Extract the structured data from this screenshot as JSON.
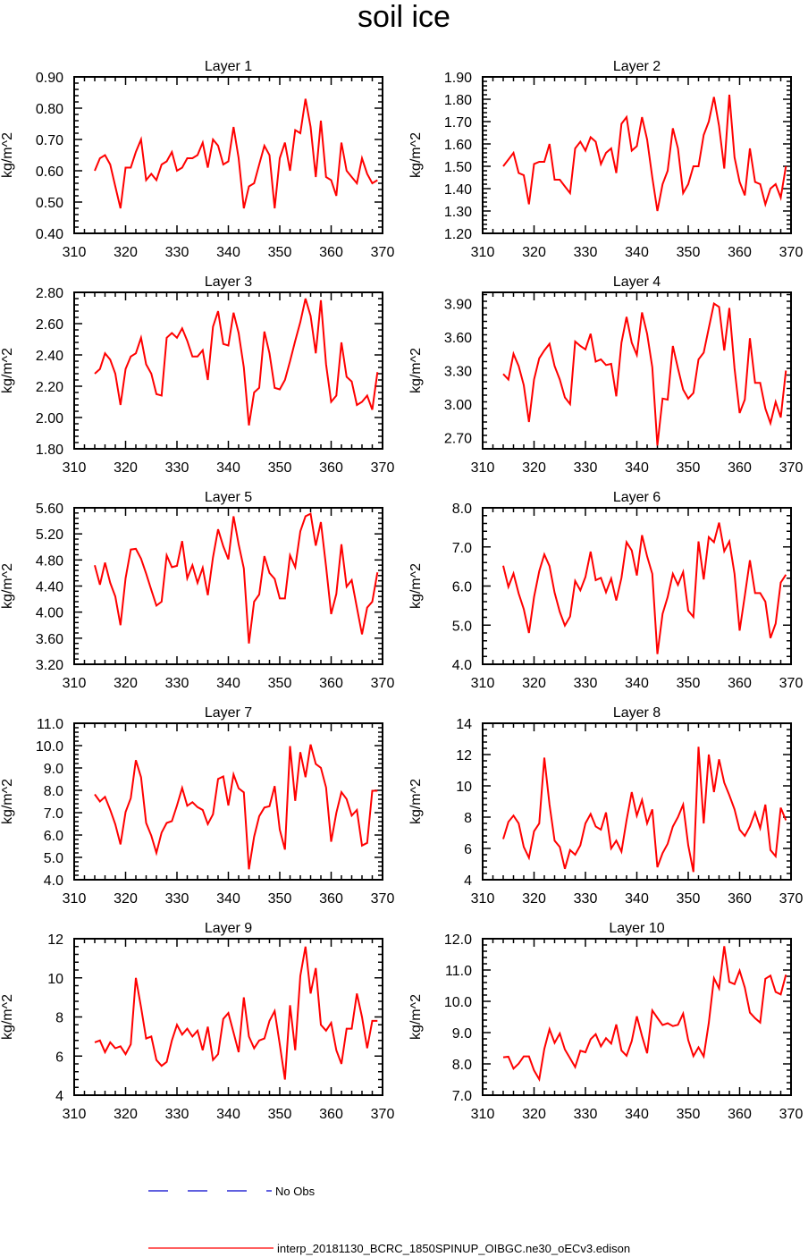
{
  "title": "soil ice",
  "colors": {
    "model": "#ff0000",
    "obs": "#0000cc",
    "axis": "#000000"
  },
  "legend": [
    {
      "label": "No Obs",
      "color": "#0000cc",
      "style": "dashed"
    },
    {
      "label": "interp_20181130_BCRC_1850SPINUP_OIBGC.ne30_oECv3.edison",
      "color": "#ff0000",
      "style": "solid"
    }
  ],
  "chart_data": [
    {
      "type": "line",
      "title": "Layer 1",
      "xlabel": "",
      "ylabel": "kg/m^2",
      "xlim": [
        310,
        370
      ],
      "ylim": [
        0.4,
        0.9
      ],
      "xticks": [
        "310",
        "320",
        "330",
        "340",
        "350",
        "360",
        "370"
      ],
      "yticks": [
        "0.40",
        "0.50",
        "0.60",
        "0.70",
        "0.80",
        "0.90"
      ],
      "x_start": 314,
      "values": [
        0.6,
        0.64,
        0.65,
        0.62,
        0.55,
        0.48,
        0.61,
        0.61,
        0.66,
        0.7,
        0.57,
        0.59,
        0.57,
        0.62,
        0.63,
        0.66,
        0.6,
        0.61,
        0.64,
        0.64,
        0.65,
        0.69,
        0.61,
        0.7,
        0.68,
        0.62,
        0.63,
        0.74,
        0.64,
        0.48,
        0.55,
        0.56,
        0.62,
        0.68,
        0.65,
        0.48,
        0.64,
        0.69,
        0.6,
        0.73,
        0.72,
        0.83,
        0.74,
        0.58,
        0.76,
        0.58,
        0.57,
        0.52,
        0.69,
        0.6,
        0.58,
        0.56,
        0.64,
        0.59,
        0.56,
        0.57
      ]
    },
    {
      "type": "line",
      "title": "Layer 2",
      "xlabel": "",
      "ylabel": "kg/m^2",
      "xlim": [
        310,
        370
      ],
      "ylim": [
        1.2,
        1.9
      ],
      "xticks": [
        "310",
        "320",
        "330",
        "340",
        "350",
        "360",
        "370"
      ],
      "yticks": [
        "1.20",
        "1.30",
        "1.40",
        "1.50",
        "1.60",
        "1.70",
        "1.80",
        "1.90"
      ],
      "x_start": 314,
      "values": [
        1.5,
        1.53,
        1.56,
        1.47,
        1.46,
        1.33,
        1.51,
        1.52,
        1.52,
        1.6,
        1.44,
        1.44,
        1.41,
        1.38,
        1.58,
        1.61,
        1.57,
        1.63,
        1.61,
        1.51,
        1.56,
        1.58,
        1.47,
        1.69,
        1.72,
        1.57,
        1.59,
        1.72,
        1.62,
        1.45,
        1.3,
        1.42,
        1.48,
        1.67,
        1.58,
        1.38,
        1.42,
        1.5,
        1.5,
        1.64,
        1.7,
        1.81,
        1.68,
        1.49,
        1.82,
        1.54,
        1.43,
        1.37,
        1.58,
        1.43,
        1.42,
        1.33,
        1.4,
        1.42,
        1.36,
        1.5
      ]
    },
    {
      "type": "line",
      "title": "Layer 3",
      "xlabel": "",
      "ylabel": "kg/m^2",
      "xlim": [
        310,
        370
      ],
      "ylim": [
        1.8,
        2.8
      ],
      "xticks": [
        "310",
        "320",
        "330",
        "340",
        "350",
        "360",
        "370"
      ],
      "yticks": [
        "1.80",
        "2.00",
        "2.20",
        "2.40",
        "2.60",
        "2.80"
      ],
      "x_start": 314,
      "values": [
        2.28,
        2.31,
        2.41,
        2.37,
        2.28,
        2.08,
        2.31,
        2.39,
        2.41,
        2.51,
        2.34,
        2.28,
        2.15,
        2.14,
        2.51,
        2.54,
        2.51,
        2.57,
        2.49,
        2.39,
        2.39,
        2.43,
        2.24,
        2.58,
        2.68,
        2.47,
        2.46,
        2.67,
        2.54,
        2.32,
        1.95,
        2.16,
        2.19,
        2.55,
        2.41,
        2.19,
        2.18,
        2.24,
        2.36,
        2.49,
        2.61,
        2.76,
        2.65,
        2.41,
        2.75,
        2.34,
        2.1,
        2.14,
        2.48,
        2.26,
        2.23,
        2.08,
        2.1,
        2.14,
        2.05,
        2.29
      ]
    },
    {
      "type": "line",
      "title": "Layer 4",
      "xlabel": "",
      "ylabel": "kg/m^2",
      "xlim": [
        310,
        370
      ],
      "ylim": [
        2.6,
        4.0
      ],
      "xticks": [
        "310",
        "320",
        "330",
        "340",
        "350",
        "360",
        "370"
      ],
      "yticks": [
        "2.70",
        "3.00",
        "3.30",
        "3.60",
        "3.90"
      ],
      "x_start": 314,
      "values": [
        3.27,
        3.22,
        3.45,
        3.34,
        3.17,
        2.84,
        3.22,
        3.41,
        3.48,
        3.54,
        3.34,
        3.22,
        3.06,
        3.0,
        3.56,
        3.52,
        3.49,
        3.63,
        3.38,
        3.4,
        3.35,
        3.36,
        3.07,
        3.55,
        3.78,
        3.55,
        3.44,
        3.82,
        3.63,
        3.33,
        2.63,
        3.05,
        3.04,
        3.52,
        3.32,
        3.13,
        3.05,
        3.1,
        3.4,
        3.46,
        3.68,
        3.9,
        3.87,
        3.48,
        3.86,
        3.32,
        2.92,
        3.04,
        3.59,
        3.19,
        3.19,
        2.96,
        2.83,
        3.02,
        2.88,
        3.3
      ]
    },
    {
      "type": "line",
      "title": "Layer 5",
      "xlabel": "",
      "ylabel": "kg/m^2",
      "xlim": [
        310,
        370
      ],
      "ylim": [
        3.2,
        5.6
      ],
      "xticks": [
        "310",
        "320",
        "330",
        "340",
        "350",
        "360",
        "370"
      ],
      "yticks": [
        "3.20",
        "3.60",
        "4.00",
        "4.40",
        "4.80",
        "5.20",
        "5.60"
      ],
      "x_start": 314,
      "values": [
        4.72,
        4.42,
        4.76,
        4.45,
        4.24,
        3.8,
        4.52,
        4.96,
        4.97,
        4.82,
        4.59,
        4.34,
        4.1,
        4.16,
        4.87,
        4.69,
        4.71,
        5.09,
        4.52,
        4.72,
        4.45,
        4.68,
        4.26,
        4.84,
        5.27,
        5.01,
        4.81,
        5.47,
        5.04,
        4.67,
        3.52,
        4.16,
        4.27,
        4.86,
        4.6,
        4.51,
        4.21,
        4.21,
        4.87,
        4.69,
        5.24,
        5.47,
        5.51,
        5.02,
        5.38,
        4.7,
        3.97,
        4.28,
        5.04,
        4.39,
        4.49,
        4.07,
        3.66,
        4.07,
        4.16,
        4.61
      ]
    },
    {
      "type": "line",
      "title": "Layer 6",
      "xlabel": "",
      "ylabel": "kg/m^2",
      "xlim": [
        310,
        370
      ],
      "ylim": [
        4.0,
        8.0
      ],
      "xticks": [
        "310",
        "320",
        "330",
        "340",
        "350",
        "360",
        "370"
      ],
      "yticks": [
        "4.0",
        "5.0",
        "6.0",
        "7.0",
        "8.0"
      ],
      "x_start": 314,
      "values": [
        6.52,
        5.98,
        6.32,
        5.81,
        5.41,
        4.8,
        5.72,
        6.38,
        6.81,
        6.51,
        5.83,
        5.34,
        4.99,
        5.22,
        6.13,
        5.89,
        6.23,
        6.88,
        6.15,
        6.21,
        5.84,
        6.19,
        5.63,
        6.21,
        7.12,
        6.91,
        6.27,
        7.3,
        6.76,
        6.31,
        4.26,
        5.29,
        5.72,
        6.31,
        6.03,
        6.36,
        5.37,
        5.21,
        7.14,
        6.17,
        7.25,
        7.12,
        7.62,
        6.89,
        7.14,
        6.31,
        4.86,
        5.75,
        6.66,
        5.82,
        5.82,
        5.6,
        4.67,
        5.04,
        6.09,
        6.29
      ]
    },
    {
      "type": "line",
      "title": "Layer 7",
      "xlabel": "",
      "ylabel": "kg/m^2",
      "xlim": [
        310,
        370
      ],
      "ylim": [
        4.0,
        11.0
      ],
      "xticks": [
        "310",
        "320",
        "330",
        "340",
        "350",
        "360",
        "370"
      ],
      "yticks": [
        "4.0",
        "5.0",
        "6.0",
        "7.0",
        "8.0",
        "9.0",
        "10.0",
        "11.0"
      ],
      "x_start": 314,
      "values": [
        7.82,
        7.5,
        7.71,
        7.13,
        6.48,
        5.58,
        7.03,
        7.65,
        9.35,
        8.59,
        6.54,
        5.97,
        5.2,
        6.11,
        6.54,
        6.62,
        7.32,
        8.11,
        7.31,
        7.47,
        7.25,
        7.12,
        6.49,
        6.93,
        8.51,
        8.62,
        7.32,
        8.71,
        8.09,
        7.91,
        4.47,
        5.92,
        6.84,
        7.23,
        7.29,
        8.19,
        6.24,
        5.35,
        9.98,
        7.53,
        9.71,
        8.59,
        10.05,
        9.18,
        9.01,
        8.13,
        5.7,
        6.99,
        7.92,
        7.61,
        6.87,
        7.12,
        5.53,
        5.65,
        7.98,
        7.98
      ]
    },
    {
      "type": "line",
      "title": "Layer 8",
      "xlabel": "",
      "ylabel": "kg/m^2",
      "xlim": [
        310,
        370
      ],
      "ylim": [
        4,
        14
      ],
      "xticks": [
        "310",
        "320",
        "330",
        "340",
        "350",
        "360",
        "370"
      ],
      "yticks": [
        "4",
        "6",
        "8",
        "10",
        "12",
        "14"
      ],
      "x_start": 314,
      "values": [
        6.6,
        7.7,
        8.1,
        7.6,
        6.1,
        5.4,
        7.1,
        7.6,
        11.8,
        8.8,
        6.5,
        6.1,
        4.7,
        5.9,
        5.6,
        6.2,
        7.6,
        8.2,
        7.4,
        7.2,
        8.3,
        6.0,
        6.5,
        5.8,
        7.8,
        9.6,
        8.1,
        9.1,
        7.6,
        8.5,
        4.8,
        5.7,
        6.3,
        7.4,
        8.0,
        8.8,
        6.2,
        4.5,
        12.5,
        7.6,
        12.0,
        9.6,
        11.7,
        10.2,
        9.4,
        8.5,
        7.2,
        6.8,
        7.4,
        8.3,
        7.3,
        8.8,
        5.9,
        5.5,
        8.6,
        7.8
      ]
    },
    {
      "type": "line",
      "title": "Layer 9",
      "xlabel": "",
      "ylabel": "kg/m^2",
      "xlim": [
        310,
        370
      ],
      "ylim": [
        4,
        12
      ],
      "xticks": [
        "310",
        "320",
        "330",
        "340",
        "350",
        "360",
        "370"
      ],
      "yticks": [
        "4",
        "6",
        "8",
        "10",
        "12"
      ],
      "x_start": 314,
      "values": [
        6.7,
        6.8,
        6.2,
        6.7,
        6.4,
        6.5,
        6.1,
        6.6,
        10.0,
        8.5,
        6.9,
        7.0,
        5.8,
        5.5,
        5.7,
        6.8,
        7.6,
        7.1,
        7.4,
        7.0,
        7.3,
        6.3,
        7.5,
        5.8,
        6.1,
        7.9,
        8.2,
        7.2,
        6.2,
        9.0,
        7.0,
        6.4,
        6.8,
        6.9,
        7.8,
        8.3,
        6.6,
        4.8,
        8.6,
        6.3,
        10.1,
        11.6,
        9.2,
        10.5,
        7.6,
        7.3,
        7.7,
        6.3,
        5.6,
        7.4,
        7.4,
        9.2,
        8.0,
        6.4,
        7.8,
        7.8
      ]
    },
    {
      "type": "line",
      "title": "Layer 10",
      "xlabel": "",
      "ylabel": "kg/m^2",
      "xlim": [
        310,
        370
      ],
      "ylim": [
        7.0,
        12.0
      ],
      "xticks": [
        "310",
        "320",
        "330",
        "340",
        "350",
        "360",
        "370"
      ],
      "yticks": [
        "7.0",
        "8.0",
        "9.0",
        "10.0",
        "11.0",
        "12.0"
      ],
      "x_start": 314,
      "values": [
        8.21,
        8.23,
        7.85,
        8.01,
        8.24,
        8.24,
        7.79,
        7.51,
        8.48,
        9.11,
        8.67,
        8.97,
        8.46,
        8.18,
        7.9,
        8.42,
        8.37,
        8.79,
        8.95,
        8.56,
        8.82,
        8.65,
        9.26,
        8.43,
        8.26,
        8.73,
        9.52,
        8.89,
        8.34,
        9.71,
        9.47,
        9.24,
        9.3,
        9.21,
        9.25,
        9.61,
        8.76,
        8.25,
        8.53,
        8.24,
        9.31,
        10.74,
        10.41,
        11.76,
        10.62,
        10.55,
        10.98,
        10.44,
        9.64,
        9.46,
        9.32,
        10.72,
        10.82,
        10.3,
        10.22,
        10.85
      ]
    }
  ]
}
